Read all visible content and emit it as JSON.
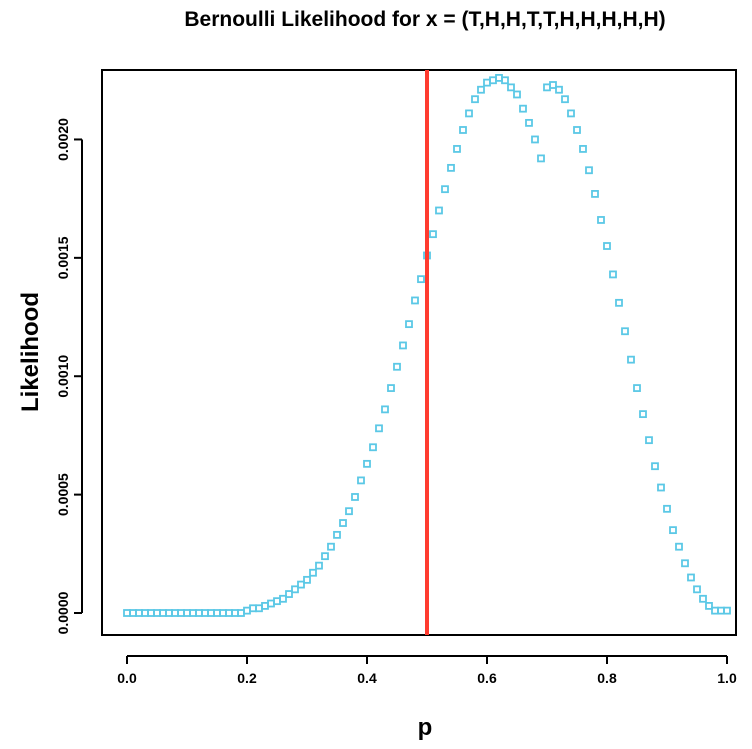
{
  "chart_data": {
    "type": "scatter",
    "title": "Bernoulli Likelihood for x = (T,H,H,T,T,H,H,H,H,H)",
    "xlabel": "p",
    "ylabel": "Likelihood",
    "xlim": [
      0,
      1
    ],
    "ylim": [
      0,
      0.00223
    ],
    "x_ticks": [
      "0.0",
      "0.2",
      "0.4",
      "0.6",
      "0.8",
      "1.0"
    ],
    "y_ticks": [
      "0.0000",
      "0.0005",
      "0.0010",
      "0.0015",
      "0.0020"
    ],
    "grid": false,
    "point_color": "#5bc8e6",
    "reference_line": {
      "x": 0.5,
      "color": "#ff3b2f"
    },
    "series": [
      {
        "x": [
          0,
          0.01,
          0.02,
          0.03,
          0.04,
          0.05,
          0.06,
          0.07,
          0.08,
          0.09,
          0.1,
          0.11,
          0.12,
          0.13,
          0.14,
          0.15,
          0.16,
          0.17,
          0.18,
          0.19,
          0.2,
          0.21,
          0.22,
          0.23,
          0.24,
          0.25,
          0.26,
          0.27,
          0.28,
          0.29,
          0.3,
          0.31,
          0.32,
          0.33,
          0.34,
          0.35,
          0.36,
          0.37,
          0.38,
          0.39,
          0.4,
          0.41,
          0.42,
          0.43,
          0.44,
          0.45,
          0.46,
          0.47,
          0.48,
          0.49,
          0.5,
          0.51,
          0.52,
          0.53,
          0.54,
          0.55,
          0.56,
          0.57,
          0.58,
          0.59,
          0.6,
          0.61,
          0.62,
          0.63,
          0.64,
          0.65,
          0.66,
          0.67,
          0.68,
          0.69,
          0.7,
          0.71,
          0.72,
          0.73,
          0.74,
          0.75,
          0.76,
          0.77,
          0.78,
          0.79,
          0.8,
          0.81,
          0.82,
          0.83,
          0.84,
          0.85,
          0.86,
          0.87,
          0.88,
          0.89,
          0.9,
          0.91,
          0.92,
          0.93,
          0.94,
          0.95,
          0.96,
          0.97,
          0.98,
          0.99,
          1.0
        ],
        "y": [
          0,
          0,
          0,
          0,
          0,
          0,
          0,
          0,
          0,
          0,
          0,
          0,
          0,
          0,
          0,
          0,
          0,
          0,
          0,
          0,
          1e-05,
          2e-05,
          2e-05,
          3e-05,
          4e-05,
          5e-05,
          6e-05,
          8e-05,
          0.0001,
          0.00012,
          0.00014,
          0.00017,
          0.0002,
          0.00024,
          0.00028,
          0.00033,
          0.00038,
          0.00043,
          0.00049,
          0.00056,
          0.00063,
          0.0007,
          0.00078,
          0.00086,
          0.00095,
          0.00104,
          0.00113,
          0.00122,
          0.00132,
          0.00141,
          0.00151,
          0.0016,
          0.0017,
          0.00179,
          0.00188,
          0.00196,
          0.00204,
          0.00211,
          0.00217,
          0.00221,
          0.00224,
          0.00225,
          0.00226,
          0.00225,
          0.00222,
          0.00219,
          0.00213,
          0.00207,
          0.002,
          0.00192,
          0.00222,
          0.00223,
          0.00221,
          0.00217,
          0.00211,
          0.00204,
          0.00196,
          0.00187,
          0.00177,
          0.00166,
          0.00155,
          0.00143,
          0.00131,
          0.00119,
          0.00107,
          0.00095,
          0.00084,
          0.00073,
          0.00062,
          0.00053,
          0.00044,
          0.00035,
          0.00028,
          0.00021,
          0.00015,
          0.0001,
          6e-05,
          3e-05,
          1e-05,
          1e-05,
          1e-05
        ]
      }
    ]
  }
}
